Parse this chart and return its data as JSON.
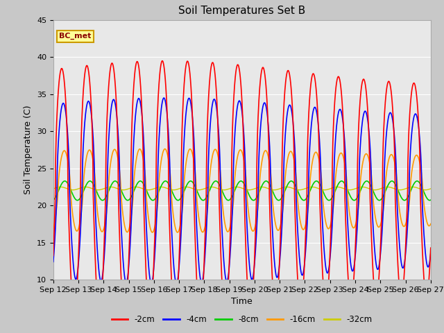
{
  "title": "Soil Temperatures Set B",
  "xlabel": "Time",
  "ylabel": "Soil Temperature (C)",
  "ylim": [
    10,
    45
  ],
  "annotation": "BC_met",
  "legend_labels": [
    "-2cm",
    "-4cm",
    "-8cm",
    "-16cm",
    "-32cm"
  ],
  "legend_colors": [
    "#ff0000",
    "#0000ff",
    "#00cc00",
    "#ff9900",
    "#cccc00"
  ],
  "fig_bg_color": "#c8c8c8",
  "plot_bg_color": "#e8e8e8",
  "x_tick_labels": [
    "Sep 12",
    "Sep 13",
    "Sep 14",
    "Sep 15",
    "Sep 16",
    "Sep 17",
    "Sep 18",
    "Sep 19",
    "Sep 20",
    "Sep 21",
    "Sep 22",
    "Sep 23",
    "Sep 24",
    "Sep 25",
    "Sep 26",
    "Sep 27"
  ],
  "mean_temp": 22.0,
  "amp_2_base": 14.0,
  "amp_4_base": 10.0,
  "amp_8_base": 1.3,
  "amp_16_base": 4.5,
  "amp_32_base": 0.2,
  "phase_lag_2_hr": 2.0,
  "phase_lag_4_hr": 3.5,
  "phase_lag_8_hr": 5.0,
  "phase_lag_16_hr": 4.5,
  "phase_lag_32_hr": 0.0
}
